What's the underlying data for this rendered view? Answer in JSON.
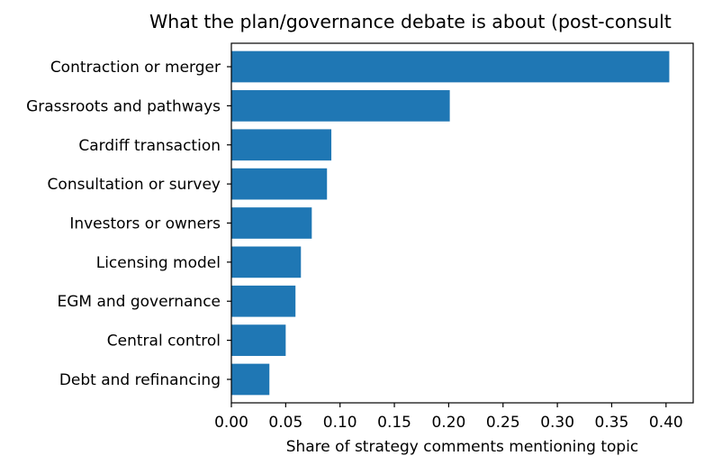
{
  "chart_data": {
    "type": "bar",
    "orientation": "horizontal",
    "title": "What the plan/governance debate is about (post-consult",
    "xlabel": "Share of strategy comments mentioning topic",
    "ylabel": "",
    "categories": [
      "Contraction or merger",
      "Grassroots and pathways",
      "Cardiff transaction",
      "Consultation or survey",
      "Investors or owners",
      "Licensing model",
      "EGM and governance",
      "Central control",
      "Debt and refinancing"
    ],
    "values": [
      0.403,
      0.201,
      0.092,
      0.088,
      0.074,
      0.064,
      0.059,
      0.05,
      0.035
    ],
    "xlim": [
      0,
      0.425
    ],
    "xticks": [
      0.0,
      0.05,
      0.1,
      0.15,
      0.2,
      0.25,
      0.3,
      0.35,
      0.4
    ],
    "xtick_labels": [
      "0.00",
      "0.05",
      "0.10",
      "0.15",
      "0.20",
      "0.25",
      "0.30",
      "0.35",
      "0.40"
    ],
    "bar_color": "#1f77b4",
    "grid": false,
    "legend": false
  }
}
